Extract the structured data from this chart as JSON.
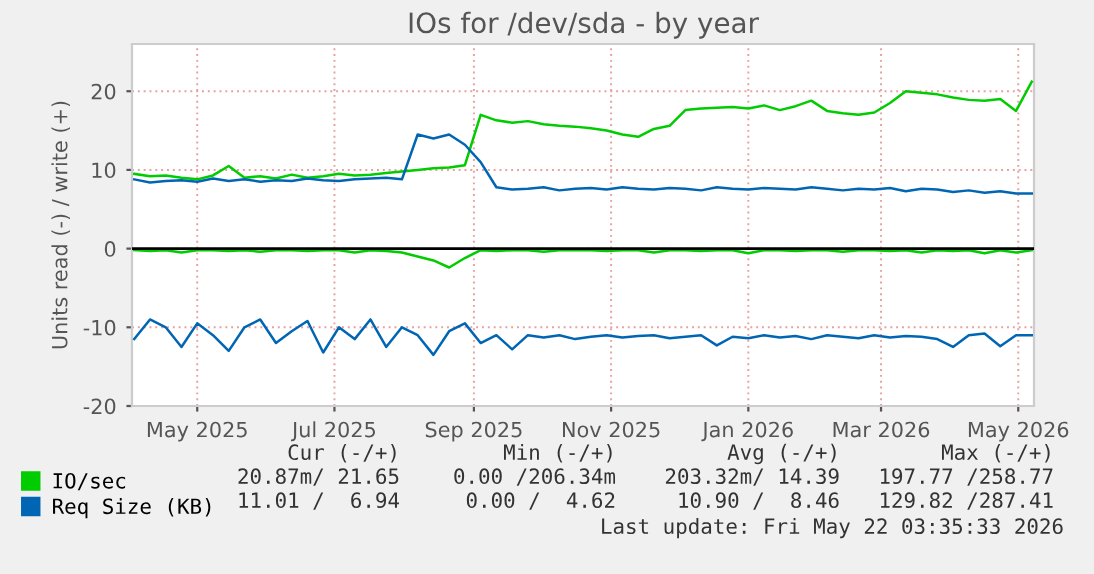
{
  "chart_data": {
    "type": "line",
    "title": "IOs for /dev/sda - by year",
    "ylabel": "Units read (-) / write (+)",
    "x": [
      "2025-04-17",
      "2025-04-24",
      "2025-05-01",
      "2025-05-08",
      "2025-05-15",
      "2025-05-22",
      "2025-05-29",
      "2025-06-05",
      "2025-06-12",
      "2025-06-19",
      "2025-06-26",
      "2025-07-03",
      "2025-07-10",
      "2025-07-17",
      "2025-07-24",
      "2025-07-31",
      "2025-08-07",
      "2025-08-14",
      "2025-08-21",
      "2025-08-28",
      "2025-09-04",
      "2025-09-11",
      "2025-09-18",
      "2025-09-25",
      "2025-10-02",
      "2025-10-09",
      "2025-10-16",
      "2025-10-23",
      "2025-10-30",
      "2025-11-06",
      "2025-11-13",
      "2025-11-20",
      "2025-11-27",
      "2025-12-04",
      "2025-12-11",
      "2025-12-18",
      "2025-12-25",
      "2026-01-01",
      "2026-01-08",
      "2026-01-15",
      "2026-01-22",
      "2026-01-29",
      "2026-02-05",
      "2026-02-12",
      "2026-02-19",
      "2026-02-26",
      "2026-03-05",
      "2026-03-12",
      "2026-03-19",
      "2026-03-26",
      "2026-04-02",
      "2026-04-09",
      "2026-04-16",
      "2026-04-23",
      "2026-04-30",
      "2026-05-07",
      "2026-05-14",
      "2026-05-21"
    ],
    "series": [
      {
        "name": "IO/sec",
        "color": "#00cc00",
        "values": [
          9.5,
          9.2,
          9.3,
          9.0,
          8.8,
          9.3,
          10.5,
          9.0,
          9.2,
          8.9,
          9.4,
          9.0,
          9.2,
          9.5,
          9.3,
          9.4,
          9.6,
          9.8,
          10.0,
          10.2,
          10.3,
          10.6,
          17.0,
          16.3,
          16.0,
          16.2,
          15.8,
          15.6,
          15.5,
          15.3,
          15.0,
          14.5,
          14.2,
          15.2,
          15.6,
          17.6,
          17.8,
          17.9,
          18.0,
          17.8,
          18.2,
          17.6,
          18.1,
          18.8,
          17.5,
          17.2,
          17.0,
          17.3,
          18.5,
          20.0,
          19.8,
          19.6,
          19.2,
          18.9,
          18.8,
          19.0,
          17.5,
          21.2
        ]
      },
      {
        "color": "#00cc00",
        "values": [
          -0.2,
          -0.3,
          -0.2,
          -0.5,
          -0.2,
          -0.2,
          -0.3,
          -0.2,
          -0.4,
          -0.2,
          -0.2,
          -0.3,
          -0.2,
          -0.2,
          -0.5,
          -0.2,
          -0.3,
          -0.5,
          -1.0,
          -1.5,
          -2.4,
          -1.2,
          -0.2,
          -0.3,
          -0.2,
          -0.2,
          -0.4,
          -0.2,
          -0.2,
          -0.2,
          -0.3,
          -0.2,
          -0.2,
          -0.5,
          -0.2,
          -0.2,
          -0.3,
          -0.2,
          -0.2,
          -0.6,
          -0.2,
          -0.2,
          -0.3,
          -0.2,
          -0.2,
          -0.4,
          -0.2,
          -0.2,
          -0.3,
          -0.2,
          -0.5,
          -0.2,
          -0.3,
          -0.2,
          -0.6,
          -0.2,
          -0.5,
          -0.2
        ]
      },
      {
        "name": "Req Size (KB)",
        "color": "#0066b3",
        "values": [
          8.8,
          8.4,
          8.6,
          8.7,
          8.5,
          8.9,
          8.6,
          8.8,
          8.5,
          8.7,
          8.6,
          8.9,
          8.7,
          8.6,
          8.8,
          8.9,
          9.0,
          8.8,
          14.5,
          14.0,
          14.5,
          13.2,
          11.0,
          7.8,
          7.5,
          7.6,
          7.8,
          7.4,
          7.6,
          7.7,
          7.5,
          7.8,
          7.6,
          7.5,
          7.7,
          7.6,
          7.4,
          7.8,
          7.6,
          7.5,
          7.7,
          7.6,
          7.5,
          7.8,
          7.6,
          7.4,
          7.6,
          7.5,
          7.7,
          7.3,
          7.6,
          7.5,
          7.2,
          7.4,
          7.1,
          7.3,
          7.0,
          7.0
        ]
      },
      {
        "color": "#0066b3",
        "values": [
          -11.5,
          -9.0,
          -10.0,
          -12.5,
          -9.5,
          -11.0,
          -13.0,
          -10.0,
          -9.0,
          -12.0,
          -10.5,
          -9.2,
          -13.2,
          -10.0,
          -11.5,
          -9.0,
          -12.5,
          -10.0,
          -11.0,
          -13.5,
          -10.5,
          -9.5,
          -12.0,
          -11.0,
          -12.8,
          -11.0,
          -11.3,
          -11.0,
          -11.5,
          -11.2,
          -11.0,
          -11.3,
          -11.1,
          -11.0,
          -11.4,
          -11.2,
          -11.0,
          -12.3,
          -11.2,
          -11.4,
          -11.0,
          -11.3,
          -11.1,
          -11.5,
          -11.0,
          -11.2,
          -11.4,
          -11.0,
          -11.3,
          -11.1,
          -11.2,
          -11.5,
          -12.5,
          -11.0,
          -10.8,
          -12.4,
          -11.0,
          -11.0
        ]
      }
    ],
    "xlim": [
      "2025-04-16",
      "2026-05-22"
    ],
    "xticks": [
      {
        "value": "2025-05-15",
        "label": "May 2025"
      },
      {
        "value": "2025-07-15",
        "label": "Jul 2025"
      },
      {
        "value": "2025-09-15",
        "label": "Sep 2025"
      },
      {
        "value": "2025-11-15",
        "label": "Nov 2025"
      },
      {
        "value": "2026-01-15",
        "label": "Jan 2026"
      },
      {
        "value": "2026-03-15",
        "label": "Mar 2026"
      },
      {
        "value": "2026-05-15",
        "label": "May 2026"
      }
    ],
    "ylim": [
      -20,
      26
    ],
    "yticks": [
      -20,
      -10,
      0,
      10,
      20
    ],
    "ref_lines": [
      {
        "axis": "y",
        "value": 0,
        "color": "#000000"
      }
    ],
    "grid": true,
    "legend": "bottom left",
    "marker": "none",
    "line_style": "solid",
    "annotations": [
      "Cur (-/+)",
      "Min (-/+)",
      "Avg (-/+)",
      "Max (-/+)",
      "20.87m/ 21.65",
      "0.00 /206.34m",
      "203.32m/ 14.39",
      "197.77 /258.77",
      "11.01 /  6.94",
      "0.00 /  4.62",
      "10.90 /  8.46",
      "129.82 /287.41",
      "Last update: Fri May 22 03:35:33 2026"
    ]
  }
}
